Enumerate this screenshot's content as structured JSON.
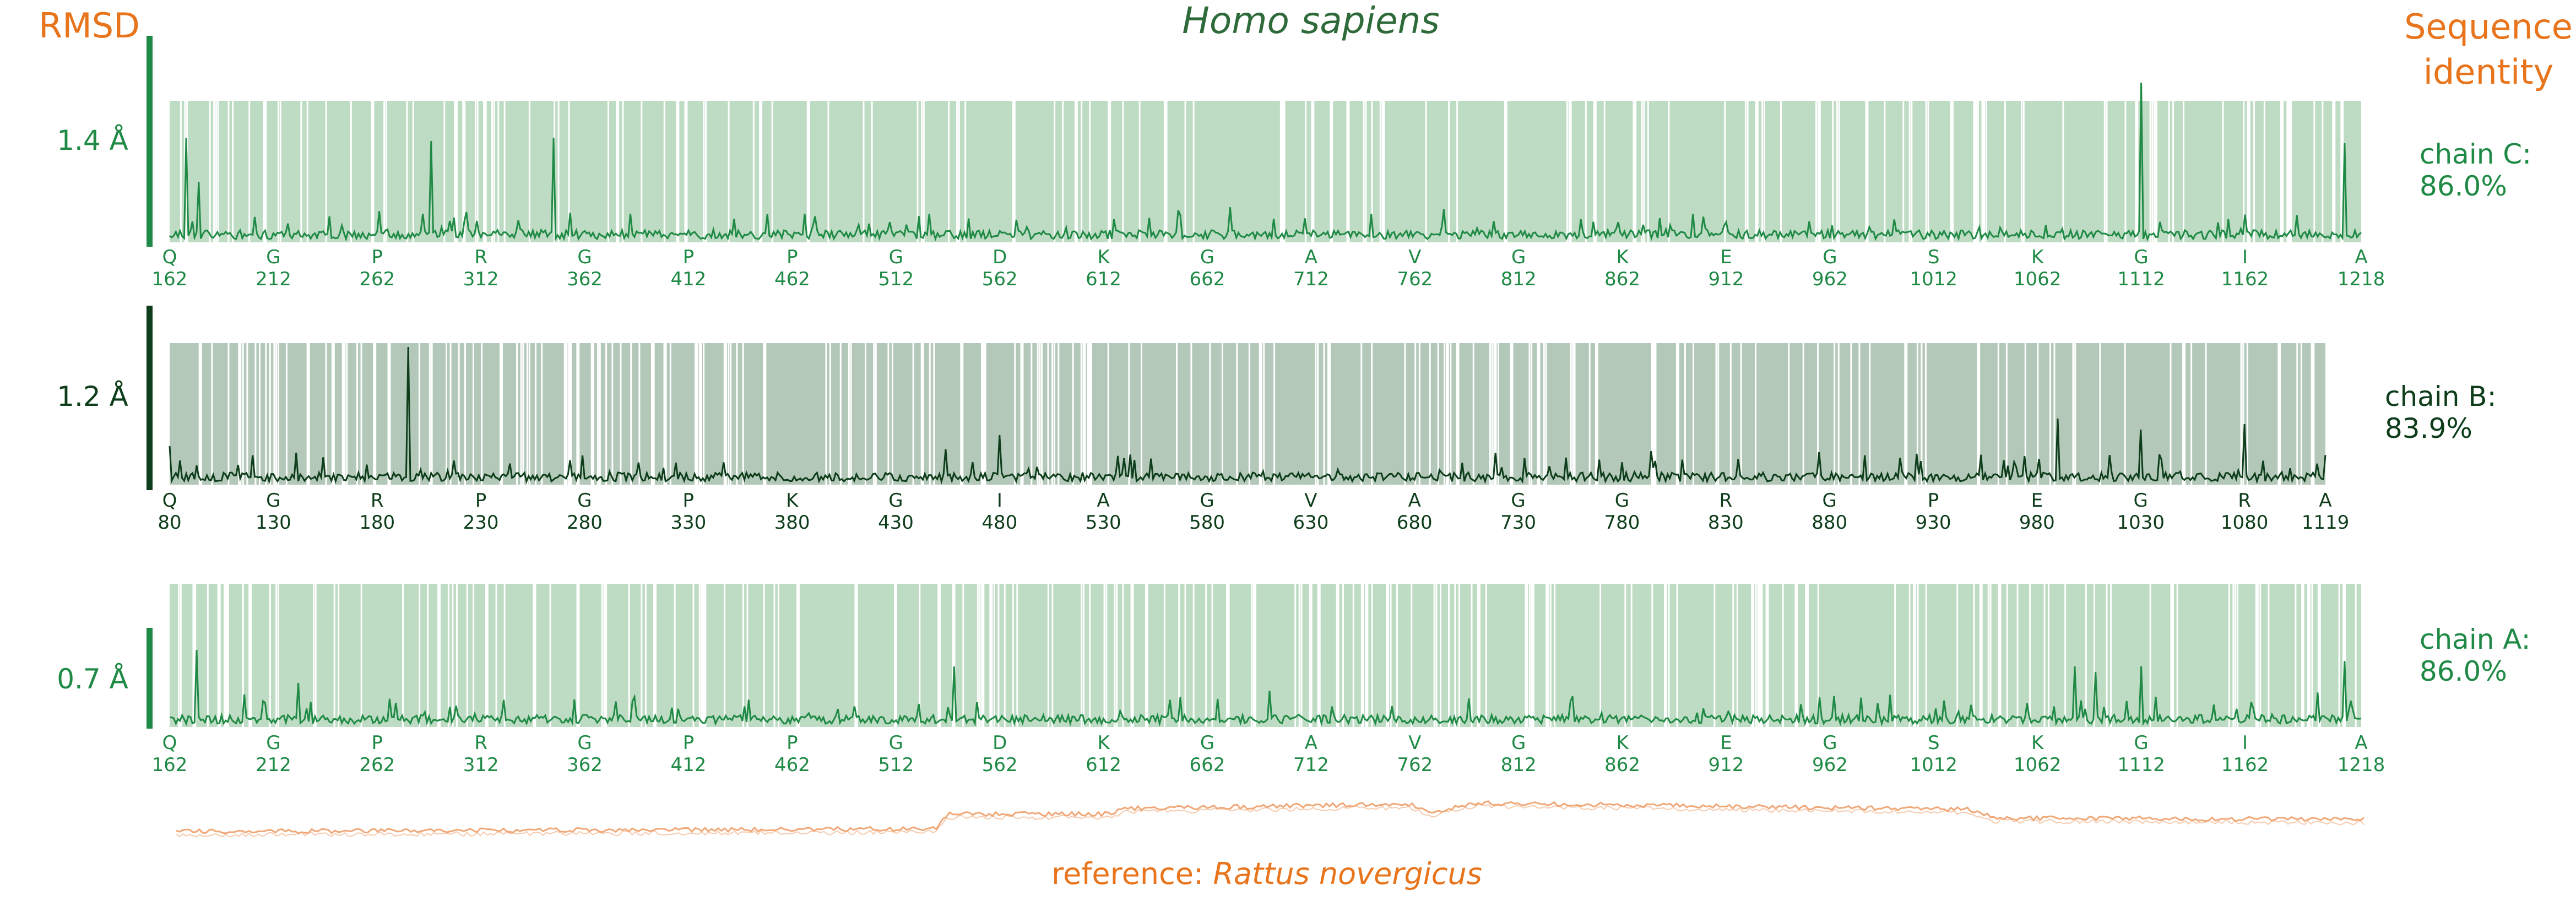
{
  "title": "Homo sapiens",
  "left_header": "RMSD",
  "right_header": [
    "Sequence",
    "identity"
  ],
  "reference_prefix": "reference: ",
  "reference_species": "Rattus novergicus",
  "colors": {
    "orange": "#e8741c",
    "title_green": "#2f6b3a",
    "light_green": "#1f8a45",
    "dark_green": "#0d3d1a",
    "band_light": "#bedbc3",
    "band_dark": "#b3c8b8",
    "reference_line": "#f0a878"
  },
  "chart_data": [
    {
      "type": "line",
      "chain_label": "chain C:",
      "identity": "86.0%",
      "rmsd_label": "1.4 Å",
      "rmsd": 1.4,
      "style": "light",
      "residue_start": 162,
      "residue_end": 1218,
      "tick_numbers": [
        "162",
        "212",
        "262",
        "312",
        "362",
        "412",
        "462",
        "512",
        "562",
        "612",
        "662",
        "712",
        "762",
        "812",
        "862",
        "912",
        "962",
        "1012",
        "1062",
        "1112",
        "1162",
        "1218"
      ],
      "tick_letters": [
        "Q",
        "G",
        "P",
        "R",
        "G",
        "P",
        "P",
        "G",
        "D",
        "K",
        "G",
        "A",
        "V",
        "G",
        "K",
        "E",
        "G",
        "S",
        "K",
        "G",
        "I",
        "A"
      ],
      "peaks": [
        [
          170,
          0.95
        ],
        [
          176,
          0.55
        ],
        [
          288,
          0.92
        ],
        [
          347,
          0.95
        ],
        [
          1112,
          1.45
        ],
        [
          1210,
          0.9
        ]
      ]
    },
    {
      "type": "line",
      "chain_label": "chain B:",
      "identity": "83.9%",
      "rmsd_label": "1.2 Å",
      "rmsd": 1.2,
      "style": "dark",
      "residue_start": 80,
      "residue_end": 1119,
      "tick_numbers": [
        "80",
        "130",
        "180",
        "230",
        "280",
        "330",
        "380",
        "430",
        "480",
        "530",
        "580",
        "630",
        "680",
        "730",
        "780",
        "830",
        "880",
        "930",
        "980",
        "1030",
        "1080",
        "1119"
      ],
      "tick_letters": [
        "Q",
        "G",
        "R",
        "P",
        "G",
        "P",
        "K",
        "G",
        "I",
        "A",
        "G",
        "V",
        "A",
        "G",
        "G",
        "R",
        "G",
        "P",
        "E",
        "G",
        "R",
        "A"
      ],
      "peaks": [
        [
          80,
          0.35
        ],
        [
          195,
          1.25
        ],
        [
          480,
          0.45
        ],
        [
          990,
          0.6
        ],
        [
          1030,
          0.5
        ],
        [
          1080,
          0.55
        ]
      ]
    },
    {
      "type": "line",
      "chain_label": "chain A:",
      "identity": "86.0%",
      "rmsd_label": "0.7 Å",
      "rmsd": 0.7,
      "style": "light",
      "residue_start": 162,
      "residue_end": 1218,
      "tick_numbers": [
        "162",
        "212",
        "262",
        "312",
        "362",
        "412",
        "462",
        "512",
        "562",
        "612",
        "662",
        "712",
        "762",
        "812",
        "862",
        "912",
        "962",
        "1012",
        "1062",
        "1112",
        "1162",
        "1218"
      ],
      "tick_letters": [
        "Q",
        "G",
        "P",
        "R",
        "G",
        "P",
        "P",
        "G",
        "D",
        "K",
        "G",
        "A",
        "V",
        "G",
        "K",
        "E",
        "G",
        "S",
        "K",
        "G",
        "I",
        "A"
      ],
      "peaks": [
        [
          175,
          0.7
        ],
        [
          224,
          0.4
        ],
        [
          540,
          0.55
        ],
        [
          1080,
          0.55
        ],
        [
          1090,
          0.5
        ],
        [
          1112,
          0.55
        ],
        [
          1210,
          0.6
        ]
      ]
    }
  ]
}
